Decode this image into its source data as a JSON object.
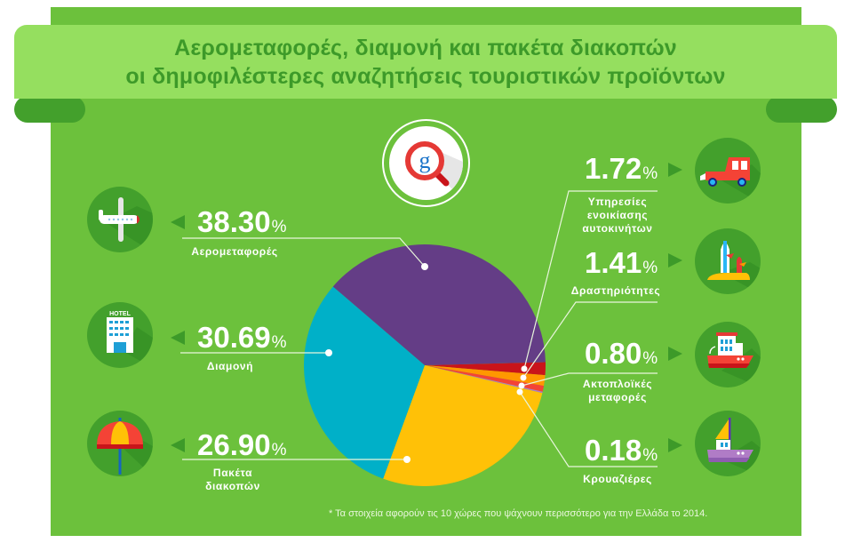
{
  "title": {
    "line1": "Αερομεταφορές, διαμονή και πακέτα διακοπών",
    "line2": "οι δημοφιλέστερες αναζητήσεις τουριστικών προϊόντων"
  },
  "center_icon": "google-search-magnifier-icon",
  "left_items": [
    {
      "value": "38.30",
      "unit": "%",
      "label": "Αερομεταφορές",
      "icon": "airplane-icon"
    },
    {
      "value": "30.69",
      "unit": "%",
      "label": "Διαμονή",
      "icon": "hotel-icon",
      "icon_text": "HOTEL"
    },
    {
      "value": "26.90",
      "unit": "%",
      "label_line1": "Πακέτα",
      "label_line2": "διακοπών",
      "icon": "beach-umbrella-icon"
    }
  ],
  "right_items": [
    {
      "value": "1.72",
      "unit": "%",
      "label_line1": "Υπηρεσίες",
      "label_line2": "ενοικίασης",
      "label_line3": "αυτοκινήτων",
      "icon": "car-icon"
    },
    {
      "value": "1.41",
      "unit": "%",
      "label": "Δραστηριότητες",
      "icon": "surfboards-icon"
    },
    {
      "value": "0.80",
      "unit": "%",
      "label_line1": "Ακτοπλοϊκές",
      "label_line2": "μεταφορές",
      "icon": "ferry-icon"
    },
    {
      "value": "0.18",
      "unit": "%",
      "label": "Κρουαζιέρες",
      "icon": "cruise-sailboat-icon"
    }
  ],
  "footnote": "* Τα στοιχεία αφορούν τις 10 χώρες που ψάχνουν περισσότερο για την Ελλάδα το 2014.",
  "colors": {
    "background": "#6cc13c",
    "banner": "#95df5f",
    "banner_text": "#3d9a29",
    "fold": "#43a02c",
    "airlines": "#643d86",
    "accommodation": "#00b0c8",
    "packages": "#ffc107",
    "car_rental": "#c9141a",
    "activities": "#ff9800",
    "ferries": "#f44336",
    "cruises": "#b07cc6"
  },
  "chart_data": {
    "type": "pie",
    "title": "Αερομεταφορές, διαμονή και πακέτα διακοπών οι δημοφιλέστερες αναζητήσεις τουριστικών προϊόντων",
    "categories": [
      "Αερομεταφορές",
      "Διαμονή",
      "Πακέτα διακοπών",
      "Υπηρεσίες ενοικίασης αυτοκινήτων",
      "Δραστηριότητες",
      "Ακτοπλοϊκές μεταφορές",
      "Κρουαζιέρες"
    ],
    "values": [
      38.3,
      30.69,
      26.9,
      1.72,
      1.41,
      0.8,
      0.18
    ],
    "unit": "%",
    "slice_colors": [
      "#643d86",
      "#00b0c8",
      "#ffc107",
      "#c9141a",
      "#ff9800",
      "#f44336",
      "#b07cc6"
    ],
    "annotation": "* Τα στοιχεία αφορούν τις 10 χώρες που ψάχνουν περισσότερο για την Ελλάδα το 2014.",
    "legend_position": "labels-around"
  }
}
